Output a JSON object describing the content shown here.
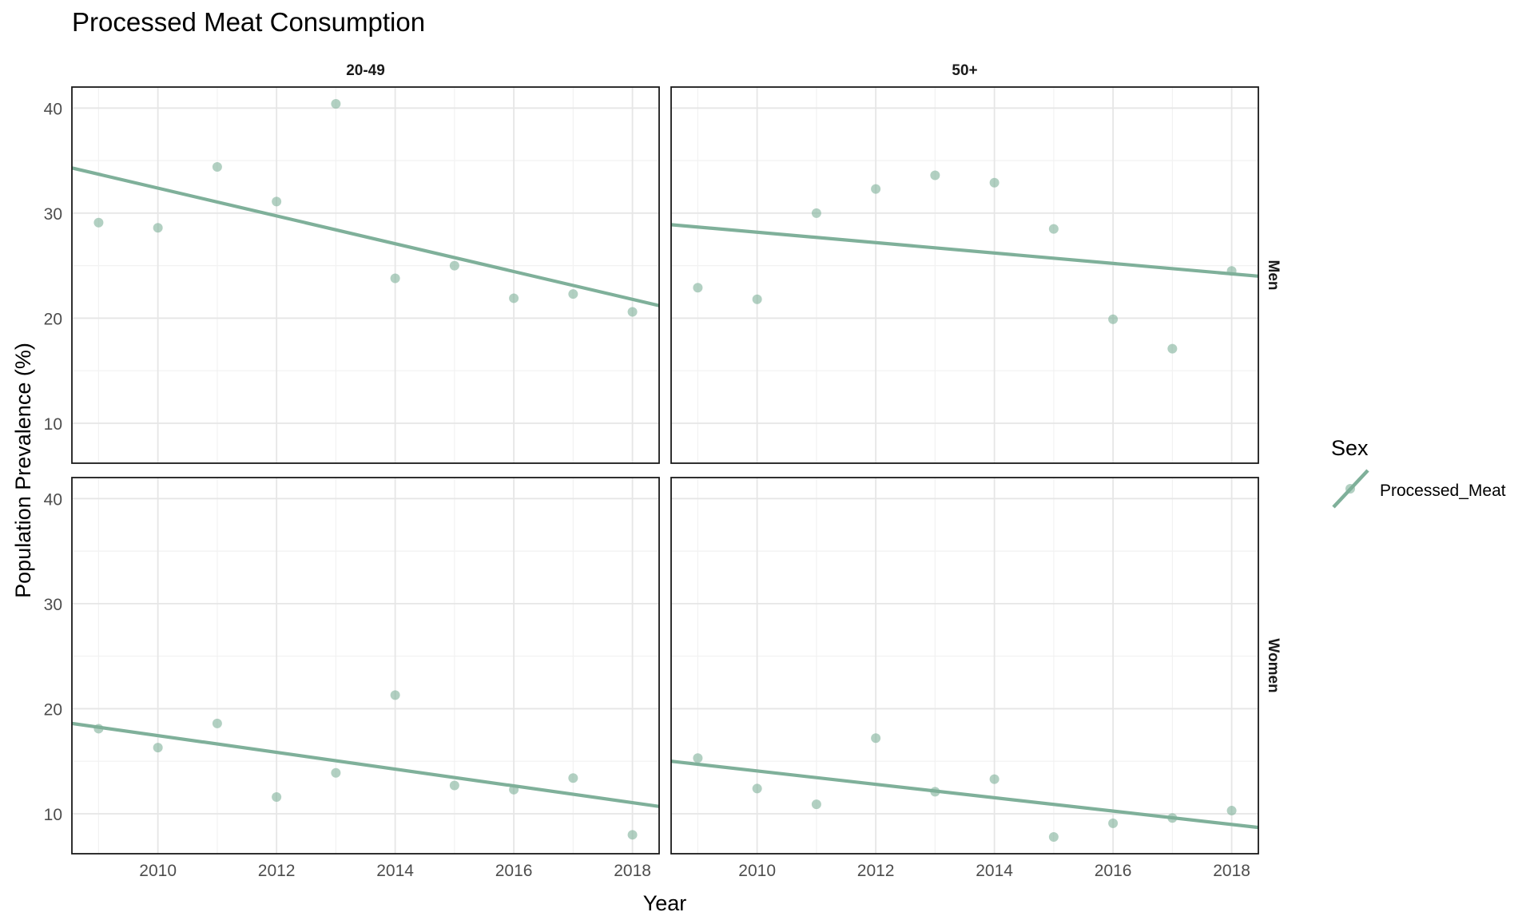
{
  "chart_data": {
    "type": "scatter",
    "title": "Processed Meat Consumption",
    "xlabel": "Year",
    "ylabel": "Population Prevalence (%)",
    "xlim": [
      2008.55,
      2018.45
    ],
    "ylim": [
      6.2,
      42.0
    ],
    "x_ticks": [
      2010,
      2012,
      2014,
      2016,
      2018
    ],
    "y_ticks": [
      10,
      20,
      30,
      40
    ],
    "grid": true,
    "facet_columns": [
      "20-49",
      "50+"
    ],
    "facet_rows": [
      "Men",
      "Women"
    ],
    "legend": {
      "title": "Sex",
      "placement": "right",
      "entries": [
        "Processed_Meat"
      ]
    },
    "color": "#7fb09a",
    "panels": [
      {
        "column": "20-49",
        "row": "Men",
        "x": [
          2009,
          2010,
          2011,
          2012,
          2013,
          2014,
          2015,
          2016,
          2017,
          2018
        ],
        "y": [
          29.1,
          28.6,
          34.4,
          31.1,
          40.4,
          23.8,
          25.0,
          21.9,
          22.3,
          20.6
        ],
        "trend": [
          [
            2008.55,
            34.3
          ],
          [
            2018.45,
            21.2
          ]
        ]
      },
      {
        "column": "50+",
        "row": "Men",
        "x": [
          2009,
          2010,
          2011,
          2012,
          2013,
          2014,
          2015,
          2016,
          2017,
          2018
        ],
        "y": [
          22.9,
          21.8,
          30.0,
          32.3,
          33.6,
          32.9,
          28.5,
          19.9,
          17.1,
          24.5
        ],
        "trend": [
          [
            2008.55,
            28.9
          ],
          [
            2018.45,
            24.0
          ]
        ]
      },
      {
        "column": "20-49",
        "row": "Women",
        "x": [
          2009,
          2010,
          2011,
          2012,
          2013,
          2014,
          2015,
          2016,
          2017,
          2018
        ],
        "y": [
          18.1,
          16.3,
          18.6,
          11.6,
          13.9,
          21.3,
          12.7,
          12.3,
          13.4,
          8.0
        ],
        "trend": [
          [
            2008.55,
            18.6
          ],
          [
            2018.45,
            10.7
          ]
        ]
      },
      {
        "column": "50+",
        "row": "Women",
        "x": [
          2009,
          2010,
          2011,
          2012,
          2013,
          2014,
          2015,
          2016,
          2017,
          2018
        ],
        "y": [
          15.3,
          12.4,
          10.9,
          17.2,
          12.1,
          13.3,
          7.8,
          9.1,
          9.6,
          10.3
        ],
        "trend": [
          [
            2008.55,
            15.0
          ],
          [
            2018.45,
            8.7
          ]
        ]
      }
    ]
  }
}
